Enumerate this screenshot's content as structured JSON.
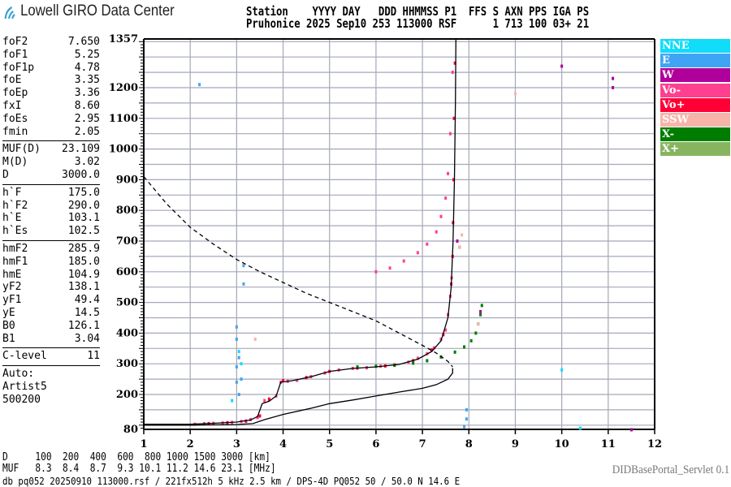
{
  "app": {
    "title": "Lowell GIRO Data Center",
    "logo_icon": "wifi-signal-icon"
  },
  "header": {
    "labels": "Station    YYYY DAY   DDD HHMMSS P1  FFS S AXN PPS IGA PS",
    "values": "Pruhonice 2025 Sep10 253 113000 RSF      1 713 100 03+ 21"
  },
  "params": {
    "groups": [
      [
        [
          "foF2",
          "7.650"
        ],
        [
          "foF1",
          "5.25"
        ],
        [
          "foF1p",
          "4.78"
        ],
        [
          "foE",
          "3.35"
        ],
        [
          "foEp",
          "3.36"
        ],
        [
          "fxI",
          "8.60"
        ],
        [
          "foEs",
          "2.95"
        ],
        [
          "fmin",
          "2.05"
        ]
      ],
      [
        [
          "MUF(D)",
          "23.109"
        ],
        [
          "M(D)",
          "3.02"
        ],
        [
          "D",
          "3000.0"
        ]
      ],
      [
        [
          "h`F",
          "175.0"
        ],
        [
          "h`F2",
          "290.0"
        ],
        [
          "h`E",
          "103.1"
        ],
        [
          "h`Es",
          "102.5"
        ]
      ],
      [
        [
          "hmF2",
          "285.9"
        ],
        [
          "hmF1",
          "185.0"
        ],
        [
          "hmE",
          "104.9"
        ],
        [
          "yF2",
          "138.1"
        ],
        [
          "yF1",
          "49.4"
        ],
        [
          "yE",
          "14.5"
        ],
        [
          "B0",
          "126.1"
        ],
        [
          "B1",
          "3.04"
        ]
      ],
      [
        [
          "C-level",
          "11"
        ]
      ]
    ],
    "auto": [
      "Auto:",
      "Artist5",
      "500200"
    ]
  },
  "legend": [
    {
      "label": "NNE",
      "color": "#11dcfa"
    },
    {
      "label": "E",
      "color": "#40a4f4"
    },
    {
      "label": "W",
      "color": "#b0009c"
    },
    {
      "label": "Vo-",
      "color": "#ff4090"
    },
    {
      "label": "Vo+",
      "color": "#ff0036"
    },
    {
      "label": "SSW",
      "color": "#f8b4a8"
    },
    {
      "label": "X-",
      "color": "#007c00"
    },
    {
      "label": "X+",
      "color": "#88b460"
    }
  ],
  "bottom": {
    "d_row": "D     100  200  400  600  800 1000 1500 3000 [km]",
    "muf_row": "MUF   8.3  8.4  8.7  9.3 10.1 11.2 14.6 23.1 [MHz]",
    "servlet": "DIDBasePortal_Servlet 0.1",
    "footer": "db pq052 20250910 113000.rsf / 221fx512h 5 kHz 2.5 km / DPS-4D PQ052 50 / 50.0 N 14.6 E"
  },
  "chart_data": {
    "type": "scatter",
    "xlim": [
      1,
      12
    ],
    "ylim": [
      80,
      1357
    ],
    "x_ticks": [
      "1",
      "2",
      "3",
      "4",
      "5",
      "6",
      "7",
      "8",
      "9",
      "10",
      "11",
      "12"
    ],
    "y_ticks": [
      "80",
      "200",
      "300",
      "400",
      "500",
      "600",
      "700",
      "800",
      "900",
      "1000",
      "1100",
      "1200",
      "1357"
    ],
    "grid": true,
    "grid_step_y": 50,
    "grid_color": "#a4a8b8",
    "series": [
      {
        "legend": "Vo-",
        "points": [
          [
            2.1,
            103
          ],
          [
            2.3,
            105
          ],
          [
            2.5,
            106
          ],
          [
            2.7,
            107
          ],
          [
            2.9,
            109
          ],
          [
            3.1,
            112
          ],
          [
            3.3,
            118
          ],
          [
            3.45,
            125
          ],
          [
            3.6,
            180
          ],
          [
            3.7,
            183
          ],
          [
            3.85,
            195
          ],
          [
            3.95,
            240
          ],
          [
            4.1,
            243
          ],
          [
            4.3,
            246
          ],
          [
            4.6,
            258
          ],
          [
            4.9,
            270
          ],
          [
            5.2,
            280
          ],
          [
            5.5,
            285
          ],
          [
            5.8,
            287
          ],
          [
            6.1,
            292
          ],
          [
            6.4,
            297
          ],
          [
            6.7,
            305
          ],
          [
            6.9,
            318
          ],
          [
            7.1,
            333
          ],
          [
            7.25,
            352
          ],
          [
            7.4,
            380
          ],
          [
            7.5,
            410
          ],
          [
            7.55,
            460
          ],
          [
            7.6,
            520
          ],
          [
            7.63,
            580
          ],
          [
            6.0,
            600
          ],
          [
            6.3,
            612
          ],
          [
            6.6,
            635
          ],
          [
            6.9,
            662
          ],
          [
            7.1,
            690
          ],
          [
            7.3,
            730
          ],
          [
            7.4,
            780
          ],
          [
            7.5,
            840
          ],
          [
            7.55,
            920
          ],
          [
            7.6,
            1050
          ],
          [
            7.65,
            1250
          ]
        ]
      },
      {
        "legend": "Vo+",
        "points": [
          [
            2.4,
            105
          ],
          [
            2.8,
            108
          ],
          [
            3.2,
            113
          ],
          [
            3.5,
            130
          ],
          [
            3.7,
            185
          ],
          [
            4.0,
            245
          ],
          [
            4.5,
            255
          ],
          [
            5.0,
            275
          ],
          [
            5.6,
            286
          ],
          [
            6.2,
            293
          ],
          [
            6.8,
            310
          ],
          [
            7.2,
            345
          ],
          [
            7.45,
            395
          ],
          [
            7.62,
            560
          ],
          [
            7.65,
            650
          ],
          [
            7.66,
            760
          ],
          [
            7.67,
            900
          ],
          [
            7.68,
            1100
          ],
          [
            7.7,
            1280
          ]
        ]
      },
      {
        "legend": "X-",
        "points": [
          [
            5.6,
            290
          ],
          [
            6.0,
            292
          ],
          [
            6.4,
            295
          ],
          [
            6.8,
            302
          ],
          [
            7.1,
            310
          ],
          [
            7.4,
            322
          ],
          [
            7.7,
            338
          ],
          [
            7.9,
            355
          ],
          [
            8.05,
            375
          ],
          [
            8.15,
            400
          ],
          [
            8.2,
            430
          ],
          [
            8.25,
            460
          ],
          [
            8.28,
            490
          ]
        ]
      },
      {
        "legend": "W",
        "points": [
          [
            7.75,
            700
          ],
          [
            7.8,
            680
          ],
          [
            8.25,
            470
          ],
          [
            10.0,
            1270
          ],
          [
            11.1,
            1230
          ],
          [
            11.1,
            1200
          ],
          [
            11.5,
            85
          ]
        ]
      },
      {
        "legend": "E",
        "points": [
          [
            3.0,
            420
          ],
          [
            3.0,
            380
          ],
          [
            3.05,
            320
          ],
          [
            3.0,
            290
          ],
          [
            3.1,
            250
          ],
          [
            3.15,
            560
          ],
          [
            3.0,
            240
          ],
          [
            3.05,
            200
          ],
          [
            7.95,
            150
          ],
          [
            7.95,
            120
          ],
          [
            7.9,
            95
          ],
          [
            2.2,
            1210
          ],
          [
            3.15,
            620
          ]
        ]
      },
      {
        "legend": "NNE",
        "points": [
          [
            3.05,
            340
          ],
          [
            3.1,
            300
          ],
          [
            2.9,
            180
          ],
          [
            10.4,
            90
          ],
          [
            10.0,
            280
          ]
        ]
      },
      {
        "legend": "SSW",
        "points": [
          [
            7.8,
            680
          ],
          [
            7.85,
            720
          ],
          [
            8.2,
            430
          ],
          [
            9.0,
            1180
          ],
          [
            3.4,
            380
          ]
        ]
      }
    ],
    "curves": [
      {
        "style": "solid",
        "name": "virtual-height trace",
        "points": [
          [
            1,
            103
          ],
          [
            2,
            103
          ],
          [
            2.5,
            106
          ],
          [
            3,
            110
          ],
          [
            3.3,
            117
          ],
          [
            3.45,
            128
          ],
          [
            3.55,
            170
          ],
          [
            3.7,
            178
          ],
          [
            3.85,
            195
          ],
          [
            3.95,
            240
          ],
          [
            4.2,
            245
          ],
          [
            4.6,
            258
          ],
          [
            5.0,
            275
          ],
          [
            5.5,
            285
          ],
          [
            6,
            290
          ],
          [
            6.5,
            298
          ],
          [
            6.9,
            315
          ],
          [
            7.2,
            340
          ],
          [
            7.4,
            375
          ],
          [
            7.55,
            450
          ],
          [
            7.62,
            550
          ],
          [
            7.66,
            700
          ],
          [
            7.69,
            900
          ],
          [
            7.71,
            1150
          ],
          [
            7.72,
            1357
          ]
        ]
      },
      {
        "style": "solid",
        "name": "true-height profile",
        "points": [
          [
            1,
            100
          ],
          [
            2,
            100
          ],
          [
            3,
            102
          ],
          [
            3.35,
            105
          ],
          [
            3.6,
            118
          ],
          [
            4,
            135
          ],
          [
            4.6,
            155
          ],
          [
            5,
            170
          ],
          [
            5.5,
            182
          ],
          [
            6,
            195
          ],
          [
            6.5,
            208
          ],
          [
            7,
            220
          ],
          [
            7.3,
            232
          ],
          [
            7.55,
            250
          ],
          [
            7.65,
            270
          ],
          [
            7.65,
            286
          ]
        ]
      },
      {
        "style": "dashed",
        "name": "muf",
        "points": [
          [
            1,
            910
          ],
          [
            1.5,
            820
          ],
          [
            2,
            745
          ],
          [
            2.5,
            690
          ],
          [
            3,
            640
          ],
          [
            3.5,
            600
          ],
          [
            4,
            565
          ],
          [
            4.5,
            530
          ],
          [
            5,
            500
          ],
          [
            5.5,
            470
          ],
          [
            6,
            440
          ],
          [
            6.5,
            400
          ],
          [
            7,
            360
          ],
          [
            7.3,
            335
          ],
          [
            7.55,
            308
          ],
          [
            7.65,
            290
          ]
        ]
      }
    ]
  }
}
